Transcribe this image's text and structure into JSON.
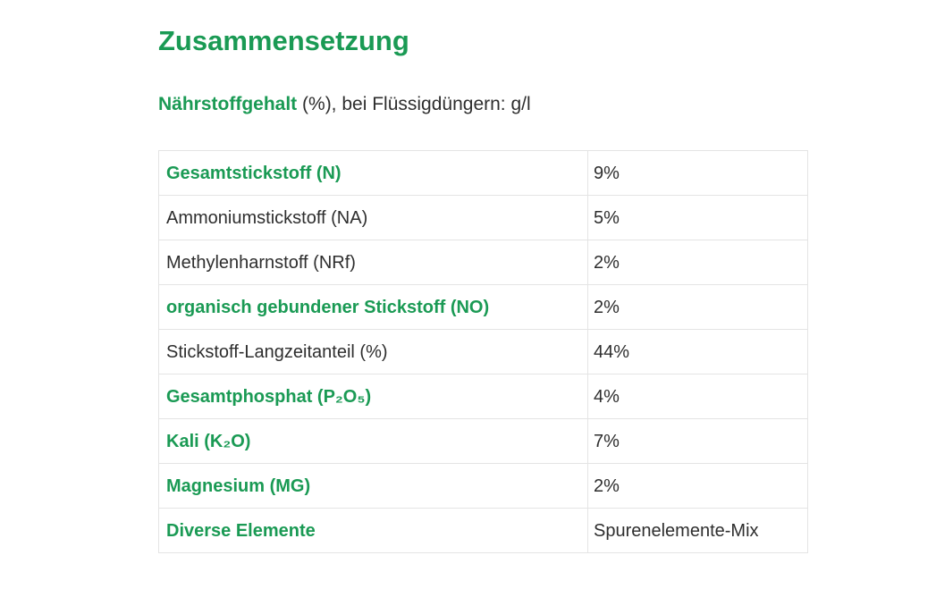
{
  "page": {
    "title": "Zusammensetzung",
    "subtitle_emphasis": "Nährstoffgehalt",
    "subtitle_rest": " (%), bei Flüssigdüngern: g/l"
  },
  "colors": {
    "accent_green": "#1a9a54",
    "text_dark": "#2e2e2e",
    "border_light": "#e4e4e4"
  },
  "table": {
    "rows": [
      {
        "label": "Gesamtstickstoff (N)",
        "value": "9%",
        "emphasis": true
      },
      {
        "label": "Ammoniumstickstoff (NA)",
        "value": "5%",
        "emphasis": false
      },
      {
        "label": "Methylenharnstoff (NRf)",
        "value": "2%",
        "emphasis": false
      },
      {
        "label": "organisch gebundener Stickstoff (NO)",
        "value": "2%",
        "emphasis": true
      },
      {
        "label": "Stickstoff-Langzeitanteil (%)",
        "value": "44%",
        "emphasis": false
      },
      {
        "label": "Gesamtphosphat (P₂O₅)",
        "value": "4%",
        "emphasis": true
      },
      {
        "label": "Kali (K₂O)",
        "value": "7%",
        "emphasis": true
      },
      {
        "label": "Magnesium (MG)",
        "value": "2%",
        "emphasis": true
      },
      {
        "label": "Diverse Elemente",
        "value": "Spurenelemente-Mix",
        "emphasis": true
      }
    ]
  }
}
